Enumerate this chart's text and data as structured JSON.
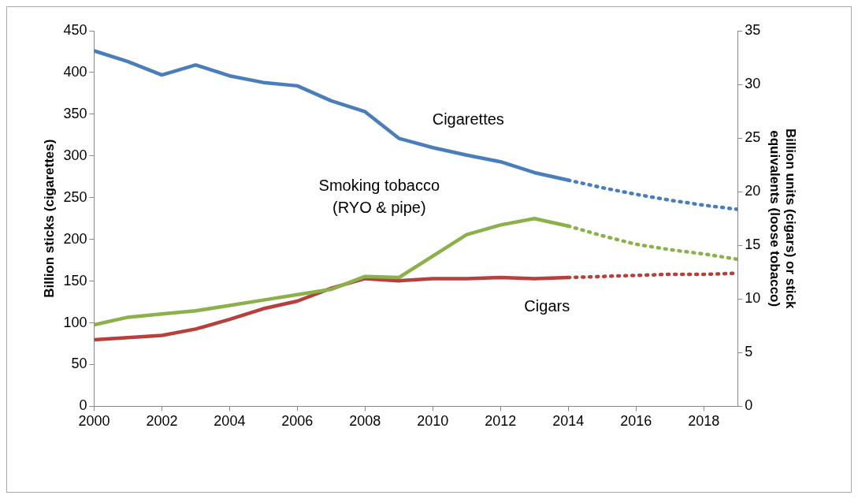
{
  "chart_data": {
    "type": "line",
    "ylabel": "Billion sticks (cigarettes)",
    "y2label": "Billion units (cigars) or stick equivalents (loose tobacco)",
    "x": [
      2000,
      2001,
      2002,
      2003,
      2004,
      2005,
      2006,
      2007,
      2008,
      2009,
      2010,
      2011,
      2012,
      2013,
      2014
    ],
    "series": [
      {
        "name": "Cigarettes",
        "color": "#4a7ebb",
        "values": [
          426,
          413,
          397,
          409,
          396,
          388,
          384,
          366,
          353,
          321,
          310,
          301,
          293,
          280,
          271
        ]
      },
      {
        "name": "Smoking tobacco (RYO & pipe)",
        "color": "#8cb04a",
        "axis": "y2",
        "values": [
          7.6,
          8.3,
          8.6,
          8.9,
          9.4,
          9.9,
          10.4,
          10.9,
          12.1,
          12.0,
          14.0,
          16.0,
          16.9,
          17.5,
          16.8
        ]
      },
      {
        "name": "Cigars",
        "color": "#b5403d",
        "axis": "y2",
        "values": [
          6.2,
          6.4,
          6.6,
          7.2,
          8.1,
          9.1,
          9.8,
          11.0,
          11.9,
          11.7,
          11.9,
          11.9,
          12.0,
          11.9,
          12.0
        ]
      },
      {
        "color": "#4a7ebb",
        "line_style": "dotted",
        "x": [
          2014,
          2015,
          2016,
          2017,
          2018,
          2019
        ],
        "values": [
          271,
          262,
          254,
          247,
          241,
          236
        ]
      },
      {
        "color": "#8cb04a",
        "line_style": "dotted",
        "axis": "y2",
        "x": [
          2014,
          2015,
          2016,
          2017,
          2018,
          2019
        ],
        "values": [
          16.8,
          15.9,
          15.1,
          14.6,
          14.2,
          13.7
        ]
      },
      {
        "color": "#b5403d",
        "line_style": "dotted",
        "axis": "y2",
        "x": [
          2014,
          2015,
          2016,
          2017,
          2018,
          2019
        ],
        "values": [
          12.0,
          12.1,
          12.2,
          12.3,
          12.3,
          12.4
        ]
      }
    ],
    "xlim": [
      2000,
      2019
    ],
    "xticks": [
      2000,
      2002,
      2004,
      2006,
      2008,
      2010,
      2012,
      2014,
      2016,
      2018
    ],
    "ylim": [
      0,
      450
    ],
    "yticks": [
      0,
      50,
      100,
      150,
      200,
      250,
      300,
      350,
      400,
      450
    ],
    "y2lim": [
      0,
      35
    ],
    "y2ticks": [
      0,
      5,
      10,
      15,
      20,
      25,
      30,
      35
    ],
    "grid": false,
    "legend": false,
    "line_style": "solid",
    "marker": "none"
  }
}
